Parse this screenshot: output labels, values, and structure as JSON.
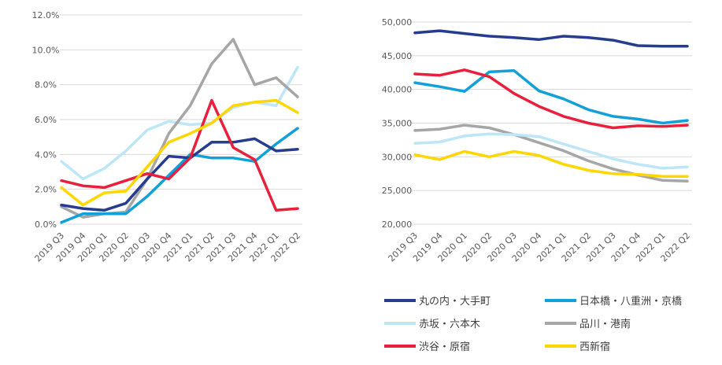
{
  "colors": {
    "marunouchi": "#263c8f",
    "nihonbashi": "#12a0d8",
    "akasaka": "#bde6f6",
    "shinagawa": "#a6a6a6",
    "shibuya": "#e8203c",
    "nishishinjuku": "#ffd700"
  },
  "chart_data": [
    {
      "type": "line",
      "title": "",
      "xlabel": "",
      "ylabel": "",
      "ylim": [
        0,
        12
      ],
      "y_ticks": [
        "0.0%",
        "2.0%",
        "4.0%",
        "6.0%",
        "8.0%",
        "10.0%",
        "12.0%"
      ],
      "y_tick_values": [
        0,
        2,
        4,
        6,
        8,
        10,
        12
      ],
      "grid": true,
      "categories": [
        "2019 Q3",
        "2019 Q4",
        "2020 Q1",
        "2020 Q2",
        "2020 Q3",
        "2020 Q4",
        "2021 Q1",
        "2021 Q2",
        "2021 Q3",
        "2021 Q4",
        "2022 Q1",
        "2022 Q2"
      ],
      "series": [
        {
          "name": "赤坂・六本木",
          "color_key": "akasaka",
          "values": [
            3.6,
            2.6,
            3.2,
            4.2,
            5.4,
            5.9,
            5.7,
            5.8,
            6.7,
            7.0,
            6.8,
            9.0
          ]
        },
        {
          "name": "品川・港南",
          "color_key": "shinagawa",
          "values": [
            1.0,
            0.4,
            0.6,
            0.7,
            2.6,
            5.2,
            6.8,
            9.2,
            10.6,
            8.0,
            8.4,
            7.3
          ]
        },
        {
          "name": "日本橋・八重洲・京橋",
          "color_key": "nihonbashi",
          "values": [
            0.1,
            0.6,
            0.6,
            0.6,
            1.6,
            2.8,
            4.0,
            3.8,
            3.8,
            3.6,
            4.6,
            5.5
          ]
        },
        {
          "name": "丸の内・大手町",
          "color_key": "marunouchi",
          "values": [
            1.1,
            0.9,
            0.8,
            1.2,
            2.6,
            3.9,
            3.8,
            4.7,
            4.7,
            4.9,
            4.2,
            4.3
          ]
        },
        {
          "name": "渋谷・原宿",
          "color_key": "shibuya",
          "values": [
            2.5,
            2.2,
            2.1,
            2.5,
            2.9,
            2.6,
            3.8,
            7.1,
            4.4,
            3.7,
            0.8,
            0.9
          ]
        },
        {
          "name": "西新宿",
          "color_key": "nishishinjuku",
          "values": [
            2.1,
            1.1,
            1.8,
            1.9,
            3.3,
            4.7,
            5.2,
            5.8,
            6.8,
            7.0,
            7.1,
            6.4
          ]
        }
      ]
    },
    {
      "type": "line",
      "title": "",
      "xlabel": "",
      "ylabel": "",
      "ylim": [
        20000,
        50000
      ],
      "y_ticks": [
        "20,000",
        "25,000",
        "30,000",
        "35,000",
        "40,000",
        "45,000",
        "50,000"
      ],
      "y_tick_values": [
        20000,
        25000,
        30000,
        35000,
        40000,
        45000,
        50000
      ],
      "grid": true,
      "categories": [
        "2019 Q3",
        "2019 Q4",
        "2020 Q1",
        "2020 Q2",
        "2020 Q3",
        "2020 Q4",
        "2021 Q1",
        "2021 Q2",
        "2021 Q3",
        "2021 Q4",
        "2022 Q1",
        "2022 Q2"
      ],
      "series": [
        {
          "name": "丸の内・大手町",
          "color_key": "marunouchi",
          "values": [
            48400,
            48700,
            48300,
            47900,
            47700,
            47400,
            47900,
            47700,
            47300,
            46500,
            46400,
            46400
          ]
        },
        {
          "name": "日本橋・八重洲・京橋",
          "color_key": "nihonbashi",
          "values": [
            41000,
            40400,
            39700,
            42600,
            42800,
            39800,
            38600,
            37000,
            36000,
            35600,
            35000,
            35400
          ]
        },
        {
          "name": "渋谷・原宿",
          "color_key": "shibuya",
          "values": [
            42300,
            42100,
            42900,
            41900,
            39400,
            37500,
            36000,
            35000,
            34300,
            34600,
            34500,
            34700
          ]
        },
        {
          "name": "品川・港南",
          "color_key": "shinagawa",
          "values": [
            33900,
            34100,
            34700,
            34300,
            33300,
            32100,
            30900,
            29400,
            28200,
            27300,
            26500,
            26400
          ]
        },
        {
          "name": "赤坂・六本木",
          "color_key": "akasaka",
          "values": [
            32000,
            32200,
            33100,
            33400,
            33300,
            33000,
            31900,
            30800,
            29700,
            28900,
            28300,
            28500
          ]
        },
        {
          "name": "西新宿",
          "color_key": "nishishinjuku",
          "values": [
            30300,
            29600,
            30800,
            30000,
            30800,
            30200,
            28900,
            28000,
            27500,
            27400,
            27100,
            27100
          ]
        }
      ]
    }
  ],
  "legend": {
    "placement": "bottom-right",
    "items": [
      {
        "label": "丸の内・大手町",
        "color_key": "marunouchi"
      },
      {
        "label": "日本橋・八重洲・京橋",
        "color_key": "nihonbashi"
      },
      {
        "label": "赤坂・六本木",
        "color_key": "akasaka"
      },
      {
        "label": "品川・港南",
        "color_key": "shinagawa"
      },
      {
        "label": "渋谷・原宿",
        "color_key": "shibuya"
      },
      {
        "label": "西新宿",
        "color_key": "nishishinjuku"
      }
    ]
  }
}
